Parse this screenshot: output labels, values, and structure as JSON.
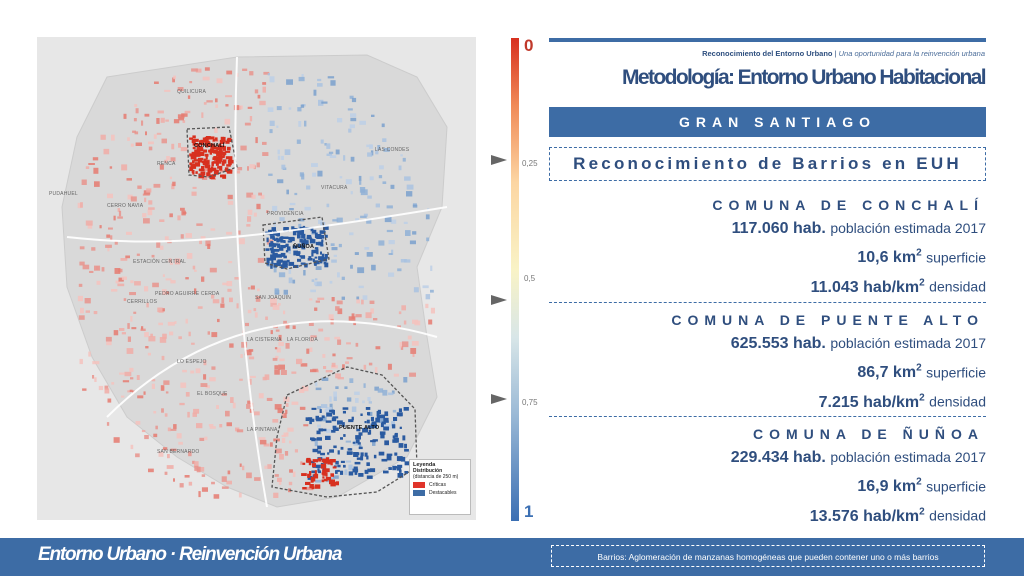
{
  "header": {
    "subtitle_bold": "Reconocimiento del Entorno Urbano",
    "subtitle_sep": " | ",
    "subtitle_italic": "Una oportunidad para la reinvención urbana",
    "title": "Metodología: Entorno Urbano Habitacional"
  },
  "band": {
    "label": "GRAN SANTIAGO"
  },
  "section": {
    "title": "Reconocimiento de Barrios en EUH"
  },
  "comunas": [
    {
      "name": "COMUNA DE CONCHALÍ",
      "population": "117.060 hab.",
      "population_label": "población estimada 2017",
      "area": "10,6 km",
      "area_label": "superficie",
      "density": "11.043 hab/km",
      "density_label": "densidad"
    },
    {
      "name": "COMUNA DE PUENTE ALTO",
      "population": "625.553 hab.",
      "population_label": "población estimada 2017",
      "area": "86,7 km",
      "area_label": "superficie",
      "density": "7.215 hab/km",
      "density_label": "densidad"
    },
    {
      "name": "COMUNA DE ÑUÑOA",
      "population": "229.434 hab.",
      "population_label": "población estimada 2017",
      "area": "16,9 km",
      "area_label": "superficie",
      "density": "13.576 hab/km",
      "density_label": "densidad"
    }
  ],
  "superscript": "2",
  "scale": {
    "top": "0",
    "t1": "0,25",
    "t2": "0,5",
    "t3": "0,75",
    "bottom": "1",
    "colors": {
      "low": "#d7301f",
      "mid": "#f9f3c6",
      "high": "#3b6fb3"
    }
  },
  "map": {
    "labels": {
      "conchali": "CONCHALÍ",
      "nunoa": "ÑUÑOA",
      "puente_alto": "PUENTE ALTO",
      "pudahuel": "PUDAHUEL",
      "cerrillos": "CERRILLOS",
      "la_cisterna": "LA CISTERNA",
      "la_florida": "LA FLORIDA",
      "san_bernardo": "SAN BERNARDO",
      "el_bosque": "EL BOSQUE",
      "la_pintana": "LA PINTANA",
      "san_joaquin": "SAN JOAQUIN",
      "lo_espejo": "LO ESPEJO",
      "estacion_central": "ESTACIÓN CENTRAL",
      "pedro_aguirre_cerda": "PEDRO AGUIRRE CERDA",
      "vitacura": "VITACURA",
      "las_condes": "LAS CONDES",
      "providencia": "PROVIDENCIA",
      "renca": "RENCA",
      "cerro_navia": "CERRO NAVIA",
      "quilicura": "QUILICURA"
    },
    "legend": {
      "title": "Leyenda",
      "subtitle": "Distribución",
      "note": "(distancia de 250 m)",
      "critical": "Críticas",
      "outstanding": "Destacables",
      "critical_color": "#e0342a",
      "outstanding_color": "#3d6ca5"
    }
  },
  "footer": {
    "title": "Entorno Urbano · Reinvención Urbana",
    "note": "Barrios: Aglomeración de manzanas homogéneas que pueden contener uno o más barrios"
  },
  "colors": {
    "brand": "#3d6ca5",
    "title": "#2f4e7e",
    "critical": "#e0342a"
  }
}
